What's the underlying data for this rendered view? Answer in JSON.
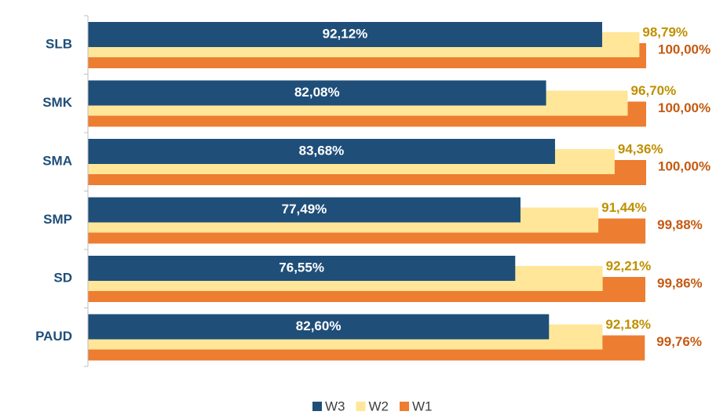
{
  "chart_data": {
    "type": "bar",
    "orientation": "horizontal",
    "categories": [
      "SLB",
      "SMK",
      "SMA",
      "SMP",
      "SD",
      "PAUD"
    ],
    "xlim": [
      0,
      100
    ],
    "series": [
      {
        "name": "W3",
        "color": "#1f4e79",
        "label_color": "#ffffff",
        "values": [
          92.12,
          82.08,
          83.68,
          77.49,
          76.55,
          82.6
        ],
        "value_labels": [
          "92,12%",
          "82,08%",
          "83,68%",
          "77,49%",
          "76,55%",
          "82,60%"
        ]
      },
      {
        "name": "W2",
        "color": "#ffe699",
        "label_color": "#bf9000",
        "values": [
          98.79,
          96.7,
          94.36,
          91.44,
          92.21,
          92.18
        ],
        "value_labels": [
          "98,79%",
          "96,70%",
          "94,36%",
          "91,44%",
          "92,21%",
          "92,18%"
        ]
      },
      {
        "name": "W1",
        "color": "#ed7d31",
        "label_color": "#c55a11",
        "values": [
          100.0,
          100.0,
          100.0,
          99.88,
          99.86,
          99.76
        ],
        "value_labels": [
          "100,00%",
          "100,00%",
          "100,00%",
          "99,88%",
          "99,86%",
          "99,76%"
        ]
      }
    ],
    "legend": "bottom"
  }
}
